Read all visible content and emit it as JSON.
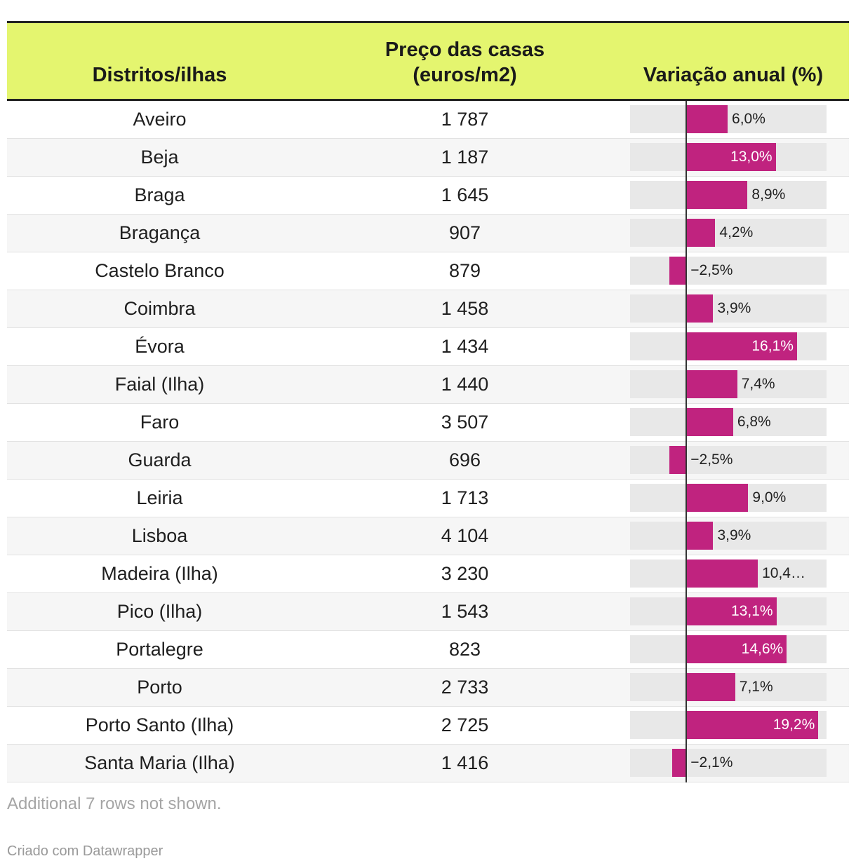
{
  "table": {
    "headers": {
      "col1": "Distritos/ilhas",
      "col2_line1": "Preço das casas",
      "col2_line2": "(euros/m2)",
      "col3": "Variação anual (%)"
    }
  },
  "chart_data": {
    "type": "table",
    "title": "",
    "columns": [
      "Distritos/ilhas",
      "Preço das casas (euros/m2)",
      "Variação anual (%)"
    ],
    "bar_color": "#c0237f",
    "header_color": "#e4f56f",
    "bar_range": [
      -8.2,
      20.4
    ],
    "rows": [
      {
        "name": "Aveiro",
        "price": "1 787",
        "change": 6.0,
        "change_label": "6,0%"
      },
      {
        "name": "Beja",
        "price": "1 187",
        "change": 13.0,
        "change_label": "13,0%"
      },
      {
        "name": "Braga",
        "price": "1 645",
        "change": 8.9,
        "change_label": "8,9%"
      },
      {
        "name": "Bragança",
        "price": "907",
        "change": 4.2,
        "change_label": "4,2%"
      },
      {
        "name": "Castelo Branco",
        "price": "879",
        "change": -2.5,
        "change_label": "−2,5%"
      },
      {
        "name": "Coimbra",
        "price": "1 458",
        "change": 3.9,
        "change_label": "3,9%"
      },
      {
        "name": "Évora",
        "price": "1 434",
        "change": 16.1,
        "change_label": "16,1%"
      },
      {
        "name": "Faial (Ilha)",
        "price": "1 440",
        "change": 7.4,
        "change_label": "7,4%"
      },
      {
        "name": "Faro",
        "price": "3 507",
        "change": 6.8,
        "change_label": "6,8%"
      },
      {
        "name": "Guarda",
        "price": "696",
        "change": -2.5,
        "change_label": "−2,5%"
      },
      {
        "name": "Leiria",
        "price": "1 713",
        "change": 9.0,
        "change_label": "9,0%"
      },
      {
        "name": "Lisboa",
        "price": "4 104",
        "change": 3.9,
        "change_label": "3,9%"
      },
      {
        "name": "Madeira (Ilha)",
        "price": "3 230",
        "change": 10.4,
        "change_label": "10,4…"
      },
      {
        "name": "Pico (Ilha)",
        "price": "1 543",
        "change": 13.1,
        "change_label": "13,1%"
      },
      {
        "name": "Portalegre",
        "price": "823",
        "change": 14.6,
        "change_label": "14,6%"
      },
      {
        "name": "Porto",
        "price": "2 733",
        "change": 7.1,
        "change_label": "7,1%"
      },
      {
        "name": "Porto Santo (Ilha)",
        "price": "2 725",
        "change": 19.2,
        "change_label": "19,2%"
      },
      {
        "name": "Santa Maria (Ilha)",
        "price": "1 416",
        "change": -2.1,
        "change_label": "−2,1%"
      }
    ]
  },
  "footer": {
    "note": "Additional 7 rows not shown.",
    "credit": "Criado com Datawrapper"
  }
}
